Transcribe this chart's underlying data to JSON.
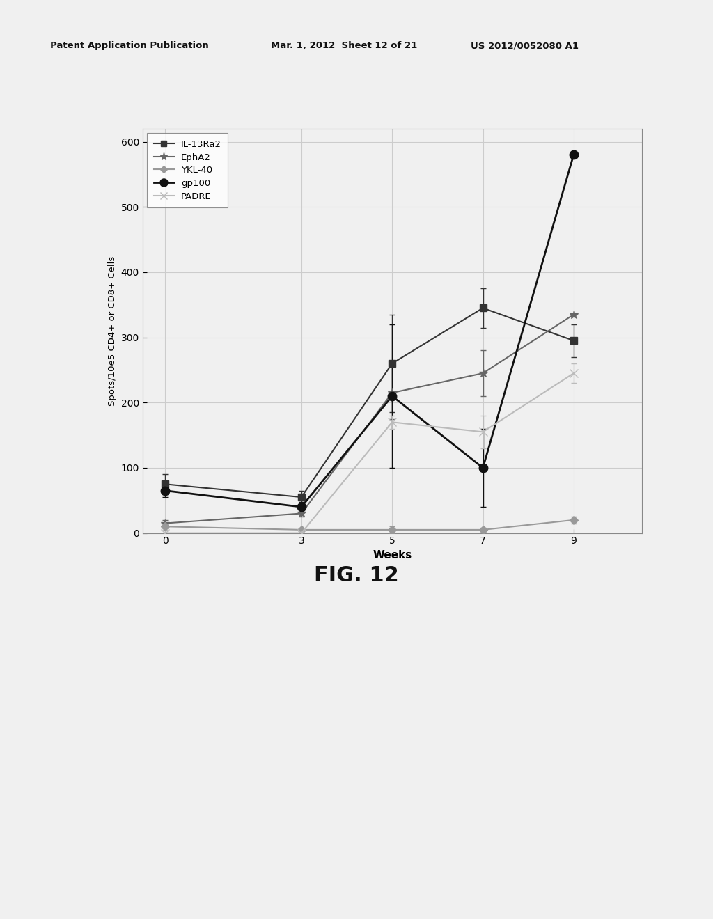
{
  "weeks": [
    0,
    3,
    5,
    7,
    9
  ],
  "series": {
    "IL-13Ra2": {
      "values": [
        75,
        55,
        260,
        345,
        295
      ],
      "errors": [
        15,
        10,
        75,
        30,
        25
      ],
      "color": "#333333",
      "marker": "s",
      "linewidth": 1.5,
      "markersize": 7
    },
    "EphA2": {
      "values": [
        15,
        30,
        215,
        245,
        335
      ],
      "errors": [
        5,
        5,
        40,
        35,
        0
      ],
      "color": "#666666",
      "marker": "*",
      "linewidth": 1.5,
      "markersize": 9
    },
    "YKL-40": {
      "values": [
        10,
        5,
        5,
        5,
        20
      ],
      "errors": [
        3,
        2,
        5,
        3,
        5
      ],
      "color": "#999999",
      "marker": "D",
      "linewidth": 1.5,
      "markersize": 6
    },
    "gp100": {
      "values": [
        65,
        40,
        210,
        100,
        580
      ],
      "errors": [
        10,
        8,
        110,
        60,
        0
      ],
      "color": "#111111",
      "marker": "o",
      "linewidth": 2.0,
      "markersize": 9
    },
    "PADRE": {
      "values": [
        0,
        0,
        170,
        155,
        245
      ],
      "errors": [
        5,
        3,
        10,
        25,
        15
      ],
      "color": "#bbbbbb",
      "marker": "x",
      "linewidth": 1.5,
      "markersize": 8
    }
  },
  "xlabel": "Weeks",
  "ylabel": "Spots/10e5 CD4+ or CD8+ Cells",
  "ylim": [
    0,
    620
  ],
  "yticks": [
    0,
    100,
    200,
    300,
    400,
    500,
    600
  ],
  "xticks": [
    0,
    3,
    5,
    7,
    9
  ],
  "fig_caption": "FIG. 12",
  "header_left": "Patent Application Publication",
  "header_mid": "Mar. 1, 2012  Sheet 12 of 21",
  "header_right": "US 2012/0052080 A1",
  "background_color": "#f0f0f0",
  "grid_color": "#cccccc"
}
